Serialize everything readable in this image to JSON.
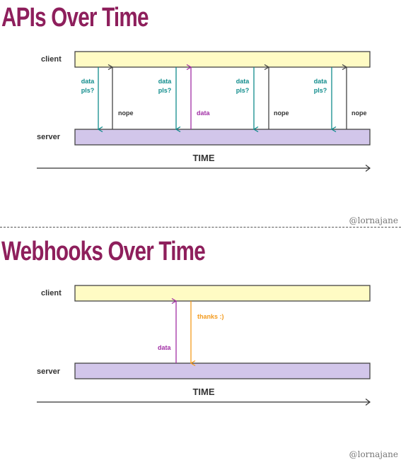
{
  "apis": {
    "title": "APIs Over Time",
    "client_label": "client",
    "server_label": "server",
    "time_label": "TIME",
    "request_label_line1": "data",
    "request_label_line2": "pls?",
    "nope_label": "nope",
    "data_label": "data",
    "credit": "@lornajane"
  },
  "webhooks": {
    "title": "Webhooks Over Time",
    "client_label": "client",
    "server_label": "server",
    "time_label": "TIME",
    "data_label": "data",
    "thanks_label": "thanks :)",
    "credit": "@lornajane"
  },
  "colors": {
    "title": "#8e1f5c",
    "client_bar": "#fffbc4",
    "server_bar": "#d2c6ea",
    "request_arrow": "#108c8c",
    "nope_arrow": "#444444",
    "data_arrow": "#a12ea5",
    "thanks_arrow": "#f39a1c"
  }
}
